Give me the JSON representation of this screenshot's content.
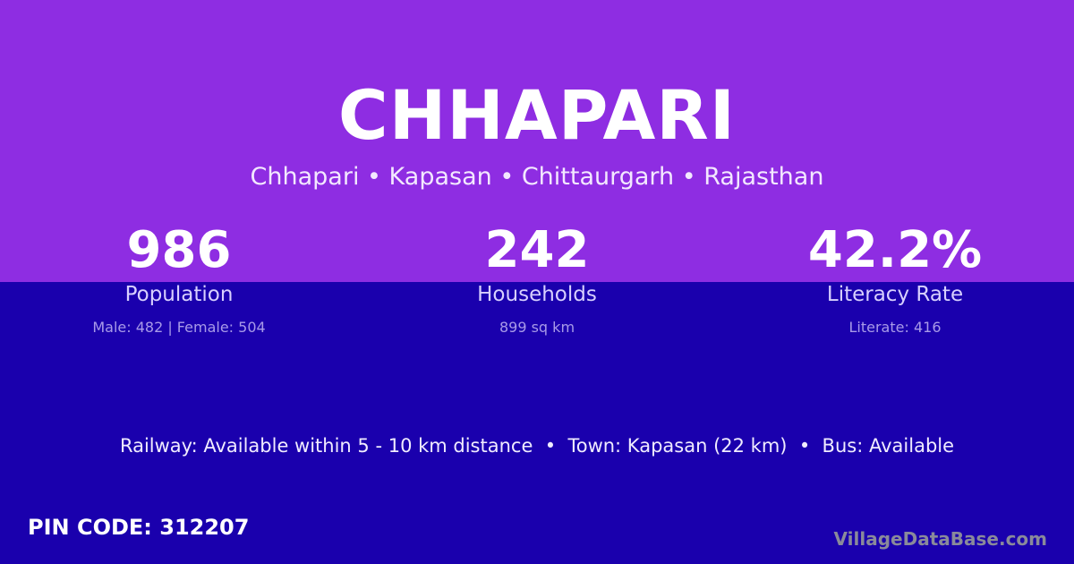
{
  "colors": {
    "top_band": "#8e2de2",
    "bottom_band": "#1a00ad"
  },
  "title": "CHHAPARI",
  "breadcrumb": "Chhapari • Kapasan • Chittaurgarh • Rajasthan",
  "stats": [
    {
      "value": "986",
      "label": "Population",
      "detail": "Male: 482 | Female: 504"
    },
    {
      "value": "242",
      "label": "Households",
      "detail": "899 sq km"
    },
    {
      "value": "42.2%",
      "label": "Literacy Rate",
      "detail": "Literate: 416"
    }
  ],
  "facts": "Railway: Available within 5 - 10 km distance  •  Town: Kapasan (22 km)  •  Bus: Available",
  "pin_code": "PIN CODE: 312207",
  "brand": "VillageDataBase.com"
}
